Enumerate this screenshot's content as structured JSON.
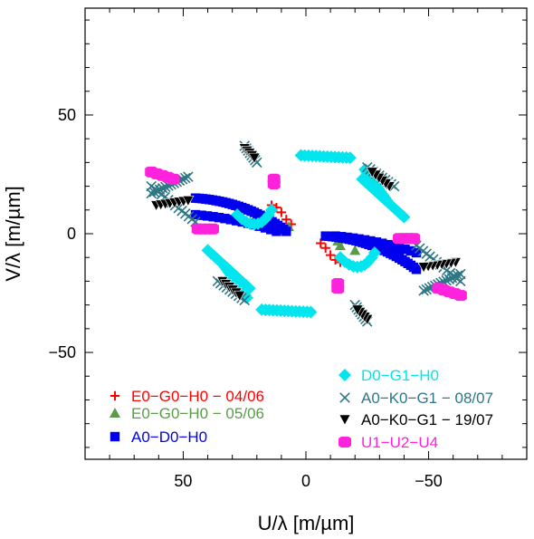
{
  "chart_data": {
    "type": "scatter",
    "title": "",
    "xlabel": "U/λ  [m/µm]",
    "ylabel": "V/λ  [m/µm]",
    "xlim": [
      90,
      -90
    ],
    "ylim": [
      -95,
      95
    ],
    "x_ticks": [
      "50",
      "0",
      "−50"
    ],
    "x_tick_values": [
      50,
      0,
      -50
    ],
    "y_ticks": [
      "50",
      "0",
      "−50"
    ],
    "y_tick_values": [
      50,
      0,
      -50
    ],
    "grid": false,
    "legend_placement": "bottom",
    "series": [
      {
        "name": "E0−G0−H0 − 04/06",
        "color": "#ff0000",
        "marker": "plus",
        "points": [
          [
            -6,
            -4
          ],
          [
            -8,
            -6
          ],
          [
            -10,
            -9
          ],
          [
            -12,
            -11
          ],
          [
            -14,
            -12
          ],
          [
            6,
            4
          ],
          [
            8,
            6
          ],
          [
            10,
            9
          ],
          [
            12,
            11
          ],
          [
            14,
            12
          ]
        ]
      },
      {
        "name": "E0−G0−H0 − 05/06",
        "color": "#5b9a4a",
        "marker": "triangle",
        "points": [
          [
            -14,
            -5
          ],
          [
            -20,
            -7
          ],
          [
            -13,
            -3
          ],
          [
            14,
            5
          ],
          [
            20,
            7
          ],
          [
            7,
            3
          ]
        ]
      },
      {
        "name": "A0−D0−H0",
        "color": "#0000ee",
        "marker": "square",
        "arcs": [
          {
            "from": [
              45,
              15
            ],
            "to": [
              8,
              1
            ],
            "n": 30,
            "bulge": -3
          },
          {
            "from": [
              45,
              8
            ],
            "to": [
              12,
              1
            ],
            "n": 15,
            "bulge": -1
          },
          {
            "from": [
              -45,
              -15
            ],
            "to": [
              -8,
              -1
            ],
            "n": 30,
            "bulge": 3
          },
          {
            "from": [
              -45,
              -8
            ],
            "to": [
              -12,
              -1
            ],
            "n": 15,
            "bulge": 1
          }
        ]
      },
      {
        "name": "D0−G1−H0",
        "color": "#00e5ee",
        "marker": "diamond",
        "arcs": [
          {
            "from": [
              -18,
              32
            ],
            "to": [
              2,
              33
            ],
            "n": 14,
            "bulge": 0
          },
          {
            "from": [
              18,
              -32
            ],
            "to": [
              -2,
              -33
            ],
            "n": 14,
            "bulge": 0
          },
          {
            "from": [
              -23,
              23
            ],
            "to": [
              -40,
              7
            ],
            "n": 14,
            "bulge": 0
          },
          {
            "from": [
              23,
              -23
            ],
            "to": [
              40,
              -7
            ],
            "n": 14,
            "bulge": 0
          },
          {
            "from": [
              33,
              -14
            ],
            "to": [
              24,
              -27
            ],
            "n": 12,
            "bulge": 0
          },
          {
            "from": [
              -33,
              14
            ],
            "to": [
              -24,
              27
            ],
            "n": 12,
            "bulge": 0
          },
          {
            "from": [
              28,
              8
            ],
            "to": [
              14,
              10
            ],
            "n": 10,
            "bulge": 5
          },
          {
            "from": [
              -28,
              -8
            ],
            "to": [
              -14,
              -10
            ],
            "n": 10,
            "bulge": -5
          }
        ]
      },
      {
        "name": "A0−K0−G1 − 08/07",
        "color": "#2e7785",
        "marker": "x",
        "arcs": [
          {
            "from": [
              63,
              17
            ],
            "to": [
              48,
              24
            ],
            "n": 14,
            "bulge": 0
          },
          {
            "from": [
              -63,
              -17
            ],
            "to": [
              -48,
              -24
            ],
            "n": 14,
            "bulge": 0
          },
          {
            "from": [
              -45,
              -5
            ],
            "to": [
              -63,
              -20
            ],
            "n": 14,
            "bulge": 0
          },
          {
            "from": [
              45,
              5
            ],
            "to": [
              63,
              20
            ],
            "n": 14,
            "bulge": 0
          },
          {
            "from": [
              25,
              37
            ],
            "to": [
              20,
              30
            ],
            "n": 8,
            "bulge": 0
          },
          {
            "from": [
              -25,
              -37
            ],
            "to": [
              -20,
              -30
            ],
            "n": 8,
            "bulge": 0
          },
          {
            "from": [
              36,
              -20
            ],
            "to": [
              25,
              -28
            ],
            "n": 10,
            "bulge": 0
          },
          {
            "from": [
              -36,
              20
            ],
            "to": [
              -25,
              28
            ],
            "n": 10,
            "bulge": 0
          }
        ]
      },
      {
        "name": "A0−K0−G1 − 19/07",
        "color": "#000000",
        "marker": "triangle-down",
        "arcs": [
          {
            "from": [
              61,
              12
            ],
            "to": [
              48,
              14
            ],
            "n": 8,
            "bulge": 0
          },
          {
            "from": [
              -61,
              -12
            ],
            "to": [
              -48,
              -14
            ],
            "n": 8,
            "bulge": 0
          },
          {
            "from": [
              25,
              36
            ],
            "to": [
              21,
              32
            ],
            "n": 5,
            "bulge": 0
          },
          {
            "from": [
              -25,
              -36
            ],
            "to": [
              -21,
              -32
            ],
            "n": 5,
            "bulge": 0
          },
          {
            "from": [
              34,
              -20
            ],
            "to": [
              27,
              -26
            ],
            "n": 6,
            "bulge": 0
          },
          {
            "from": [
              -34,
              20
            ],
            "to": [
              -27,
              26
            ],
            "n": 6,
            "bulge": 0
          }
        ]
      },
      {
        "name": "U1−U2−U4",
        "color": "#ff22dd",
        "marker": "hexagon",
        "arcs": [
          {
            "from": [
              63,
              26
            ],
            "to": [
              54,
              23
            ],
            "n": 5,
            "bulge": 0
          },
          {
            "from": [
              -63,
              -26
            ],
            "to": [
              -54,
              -23
            ],
            "n": 5,
            "bulge": 0
          },
          {
            "from": [
              44,
              2
            ],
            "to": [
              38,
              2
            ],
            "n": 4,
            "bulge": 0
          },
          {
            "from": [
              -44,
              -2
            ],
            "to": [
              -38,
              -2
            ],
            "n": 4,
            "bulge": 0
          },
          {
            "from": [
              13,
              23
            ],
            "to": [
              13,
              21
            ],
            "n": 2,
            "bulge": 0
          },
          {
            "from": [
              -13,
              -23
            ],
            "to": [
              -13,
              -21
            ],
            "n": 2,
            "bulge": 0
          }
        ]
      }
    ],
    "legend": [
      {
        "label": "E0−G0−H0 − 04/06",
        "color": "#ff0000",
        "marker": "plus"
      },
      {
        "label": "E0−G0−H0 − 05/06",
        "color": "#5b9a4a",
        "marker": "triangle"
      },
      {
        "label": "A0−D0−H0",
        "color": "#0000ee",
        "marker": "square"
      },
      {
        "label": "D0−G1−H0",
        "color": "#00e5ee",
        "marker": "diamond"
      },
      {
        "label": "A0−K0−G1 − 08/07",
        "color": "#2e7785",
        "marker": "x"
      },
      {
        "label": "A0−K0−G1 − 19/07",
        "color": "#000000",
        "marker": "triangle-down"
      },
      {
        "label": "U1−U2−U4",
        "color": "#ff22dd",
        "marker": "hexagon"
      }
    ]
  }
}
